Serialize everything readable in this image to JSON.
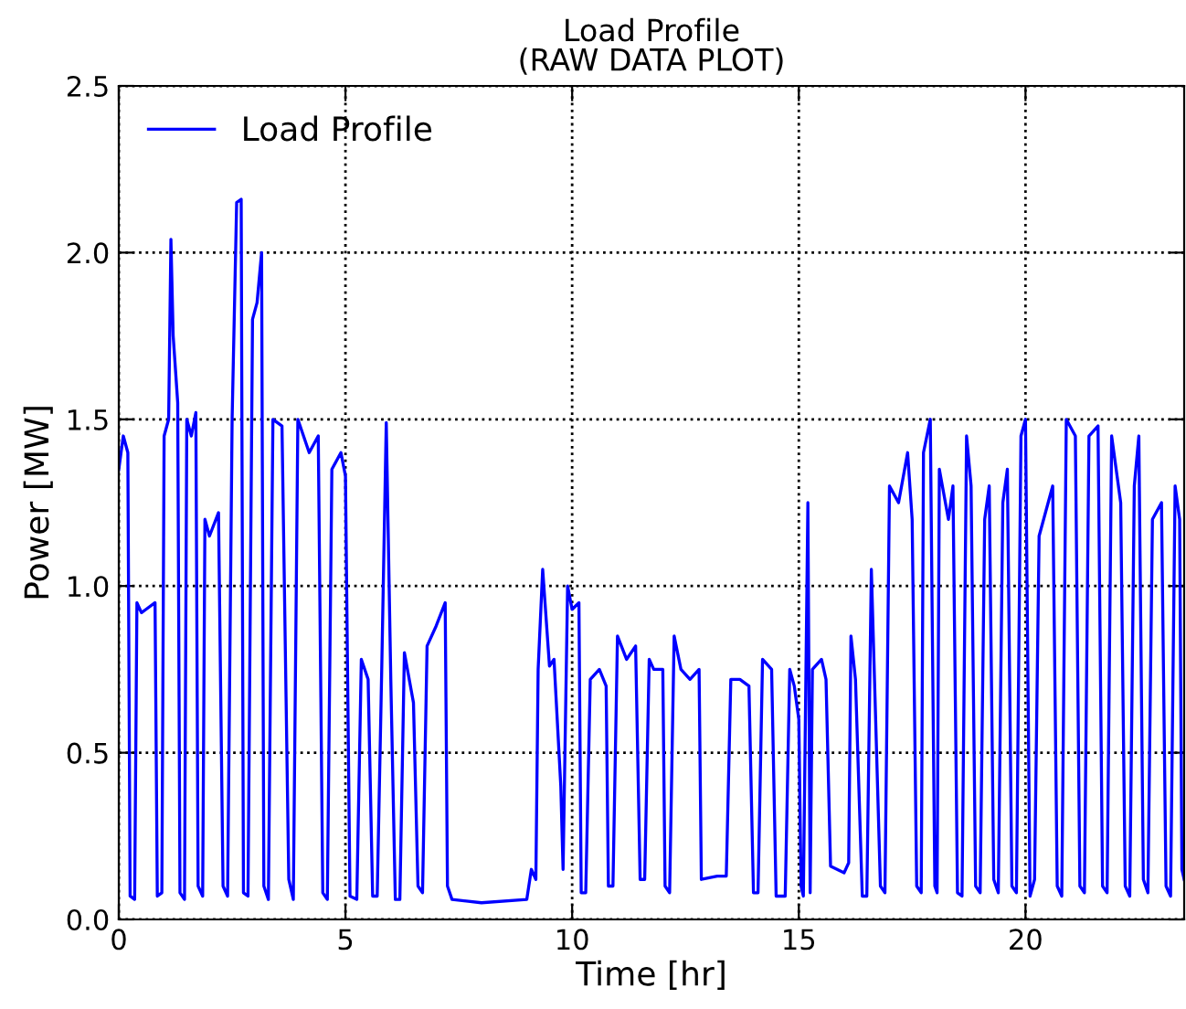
{
  "chart_data": {
    "type": "line",
    "title": "Load Profile\n(RAW DATA PLOT)",
    "xlabel": "Time [hr]",
    "ylabel": "Power [MW]",
    "xlim": [
      0,
      23.5
    ],
    "xticks": [
      0,
      5,
      10,
      15,
      20
    ],
    "ylim": [
      0,
      2.5
    ],
    "yticks": [
      {
        "value": 0,
        "label": "0.0"
      },
      {
        "value": 0.5,
        "label": "0.5"
      },
      {
        "value": 1,
        "label": "1.0"
      },
      {
        "value": 1.5,
        "label": "1.5"
      },
      {
        "value": 2,
        "label": "2.0"
      },
      {
        "value": 2.5,
        "label": "2.5"
      }
    ],
    "grid": true,
    "legend": "top left",
    "line_style": "solid",
    "marker": "none",
    "series": [
      {
        "name": "Load Profile",
        "color": "#0000ff",
        "x": [
          0,
          0.1,
          0.2,
          0.25,
          0.35,
          0.4,
          0.5,
          0.6,
          0.8,
          0.85,
          0.95,
          1.0,
          1.1,
          1.15,
          1.2,
          1.3,
          1.35,
          1.45,
          1.5,
          1.6,
          1.7,
          1.75,
          1.85,
          1.9,
          2.0,
          2.2,
          2.3,
          2.4,
          2.5,
          2.6,
          2.7,
          2.75,
          2.85,
          2.95,
          3.05,
          3.15,
          3.2,
          3.3,
          3.4,
          3.6,
          3.75,
          3.85,
          3.95,
          4.2,
          4.4,
          4.5,
          4.6,
          4.7,
          4.9,
          5.0,
          5.1,
          5.25,
          5.35,
          5.5,
          5.6,
          5.7,
          5.8,
          5.9,
          6.0,
          6.1,
          6.2,
          6.3,
          6.5,
          6.6,
          6.7,
          6.8,
          7.0,
          7.2,
          7.25,
          7.35,
          8.0,
          9.0,
          9.1,
          9.2,
          9.25,
          9.35,
          9.5,
          9.6,
          9.75,
          9.8,
          9.9,
          10.0,
          10.15,
          10.2,
          10.3,
          10.4,
          10.6,
          10.75,
          10.8,
          10.9,
          11.0,
          11.2,
          11.4,
          11.5,
          11.6,
          11.7,
          11.8,
          12.0,
          12.05,
          12.15,
          12.25,
          12.4,
          12.6,
          12.8,
          12.85,
          13.2,
          13.4,
          13.5,
          13.7,
          13.9,
          14.0,
          14.1,
          14.2,
          14.4,
          14.5,
          14.7,
          14.8,
          14.9,
          15.0,
          15.05,
          15.1,
          15.2,
          15.25,
          15.3,
          15.5,
          15.6,
          15.7,
          16.0,
          16.1,
          16.15,
          16.25,
          16.4,
          16.5,
          16.6,
          16.8,
          16.9,
          17.0,
          17.2,
          17.4,
          17.5,
          17.6,
          17.7,
          17.75,
          17.9,
          18.0,
          18.05,
          18.1,
          18.3,
          18.4,
          18.5,
          18.6,
          18.7,
          18.8,
          18.9,
          19.0,
          19.1,
          19.2,
          19.3,
          19.4,
          19.5,
          19.6,
          19.7,
          19.8,
          19.9,
          20.0,
          20.1,
          20.2,
          20.3,
          20.5,
          20.6,
          20.7,
          20.8,
          20.9,
          21.1,
          21.2,
          21.3,
          21.4,
          21.6,
          21.7,
          21.8,
          21.9,
          22.1,
          22.2,
          22.3,
          22.4,
          22.5,
          22.6,
          22.7,
          22.8,
          23.0,
          23.1,
          23.2,
          23.3,
          23.4,
          23.45,
          23.5
        ],
        "values": [
          1.35,
          1.45,
          1.4,
          0.07,
          0.06,
          0.95,
          0.92,
          0.93,
          0.95,
          0.07,
          0.08,
          1.45,
          1.5,
          2.04,
          1.75,
          1.55,
          0.08,
          0.06,
          1.5,
          1.45,
          1.52,
          0.1,
          0.07,
          1.2,
          1.15,
          1.22,
          0.1,
          0.07,
          1.5,
          2.15,
          2.16,
          0.08,
          0.07,
          1.8,
          1.85,
          2.0,
          0.1,
          0.06,
          1.5,
          1.48,
          0.12,
          0.06,
          1.5,
          1.4,
          1.45,
          0.08,
          0.06,
          1.35,
          1.4,
          1.33,
          0.07,
          0.06,
          0.78,
          0.72,
          0.07,
          0.07,
          0.75,
          1.49,
          0.72,
          0.06,
          0.06,
          0.8,
          0.65,
          0.1,
          0.08,
          0.82,
          0.88,
          0.95,
          0.1,
          0.06,
          0.05,
          0.06,
          0.15,
          0.12,
          0.75,
          1.05,
          0.76,
          0.78,
          0.4,
          0.15,
          1.0,
          0.93,
          0.95,
          0.08,
          0.08,
          0.72,
          0.75,
          0.7,
          0.1,
          0.1,
          0.85,
          0.78,
          0.82,
          0.12,
          0.12,
          0.78,
          0.75,
          0.75,
          0.1,
          0.08,
          0.85,
          0.75,
          0.72,
          0.75,
          0.12,
          0.13,
          0.13,
          0.72,
          0.72,
          0.7,
          0.08,
          0.08,
          0.78,
          0.75,
          0.07,
          0.07,
          0.75,
          0.7,
          0.6,
          0.1,
          0.07,
          1.25,
          0.08,
          0.75,
          0.78,
          0.72,
          0.16,
          0.14,
          0.17,
          0.85,
          0.72,
          0.07,
          0.07,
          1.05,
          0.1,
          0.08,
          1.3,
          1.25,
          1.4,
          1.2,
          0.1,
          0.08,
          1.4,
          1.5,
          0.1,
          0.08,
          1.35,
          1.2,
          1.3,
          0.08,
          0.07,
          1.45,
          1.3,
          0.1,
          0.08,
          1.2,
          1.3,
          0.12,
          0.08,
          1.25,
          1.35,
          0.1,
          0.08,
          1.45,
          1.5,
          0.07,
          0.12,
          1.15,
          1.25,
          1.3,
          0.1,
          0.07,
          1.5,
          1.45,
          0.1,
          0.08,
          1.45,
          1.48,
          0.1,
          0.08,
          1.45,
          1.25,
          0.1,
          0.07,
          1.3,
          1.45,
          0.12,
          0.08,
          1.2,
          1.25,
          0.1,
          0.07,
          1.3,
          1.2,
          0.15,
          0.12
        ]
      }
    ]
  }
}
